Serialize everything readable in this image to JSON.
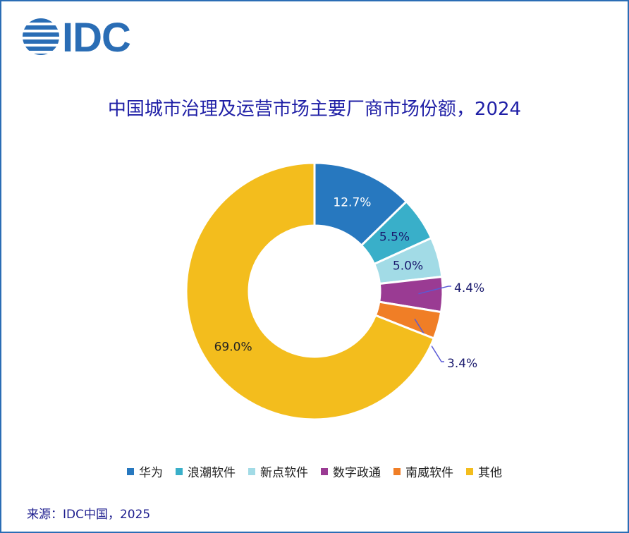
{
  "logo": {
    "text": "IDC"
  },
  "source": "来源：IDC中国，2025",
  "chart_data": {
    "type": "pie",
    "donut": true,
    "title": "中国城市治理及运营市场主要厂商市场份额，2024",
    "legend_position": "bottom",
    "slices": [
      {
        "name": "华为",
        "value": 12.7,
        "label": "12.7%",
        "color": "#2778bf"
      },
      {
        "name": "浪潮软件",
        "value": 5.5,
        "label": "5.5%",
        "color": "#39afc9"
      },
      {
        "name": "新点软件",
        "value": 5.0,
        "label": "5.0%",
        "color": "#a2dbe6"
      },
      {
        "name": "数字政通",
        "value": 4.4,
        "label": "4.4%",
        "color": "#9a3b93"
      },
      {
        "name": "南威软件",
        "value": 3.4,
        "label": "3.4%",
        "color": "#f07e26"
      },
      {
        "name": "其他",
        "value": 69.0,
        "label": "69.0%",
        "color": "#f3bd1d"
      }
    ]
  }
}
